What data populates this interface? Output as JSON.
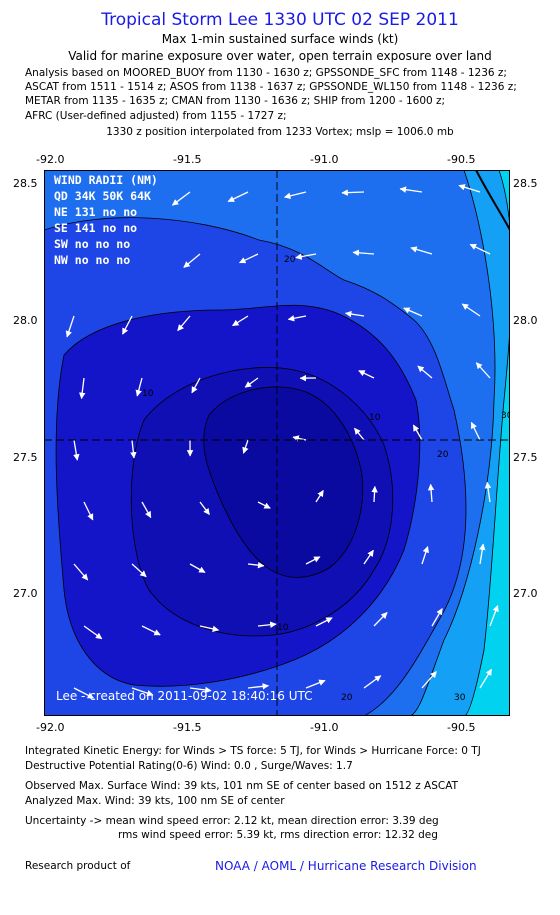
{
  "header": {
    "title": "Tropical Storm Lee 1330 UTC 02 SEP 2011",
    "subtitle": "Max 1-min sustained surface winds (kt)",
    "valid": "Valid for marine exposure over water, open terrain exposure over land",
    "analysis_lines": [
      "Analysis based on MOORED_BUOY from 1130 - 1630 z; GPSSONDE_SFC from 1148 - 1236 z;",
      "ASCAT from 1511 - 1514 z; ASOS from 1138 - 1637 z; GPSSONDE_WL150 from 1148 - 1236 z;",
      "METAR from 1135 - 1635 z; CMAN from 1130 - 1636 z; SHIP from 1200 - 1600 z;",
      "AFRC (User-defined adjusted) from 1155 - 1727 z;"
    ],
    "position": "1330 z position interpolated from 1233 Vortex; mslp = 1006.0 mb"
  },
  "map": {
    "x_ticks": [
      "-92.0",
      "-91.5",
      "-91.0",
      "-90.5"
    ],
    "y_ticks": [
      "28.5",
      "28.0",
      "27.5",
      "27.0"
    ],
    "lon_range": [
      -92.1,
      -90.1
    ],
    "lat_range": [
      26.55,
      28.6
    ],
    "center": {
      "lon": -91.0,
      "lat": 27.55
    },
    "contour_labels": [
      "20",
      "10",
      "10",
      "20",
      "10",
      "20",
      "30",
      "20",
      "30"
    ],
    "wind_radii": {
      "header": "WIND RADII (NM)",
      "columns": "QD 34K 50K 64K",
      "rows": [
        "NE 131  no  no",
        "SE 141  no  no",
        "SW  no  no  no",
        "NW  no  no  no"
      ]
    },
    "stamp": "Lee - created on 2011-09-02 18:40:16 UTC",
    "colors": {
      "lt10": "#1414c8",
      "10to20": "#1e46e6",
      "20to30": "#1e6ef0",
      "30to34": "#14a0f5",
      "gt34": "#00d2f0",
      "frame": "#000000"
    }
  },
  "footer": {
    "ike": "Integrated Kinetic Energy:  for Winds > TS force: 5 TJ,  for Winds > Hurricane Force: 0 TJ",
    "dpr": "Destructive Potential Rating(0-6)   Wind: 0.0 , Surge/Waves: 1.7",
    "observed": "Observed Max. Surface Wind: 39 kts, 101 nm SE of center based on 1512 z ASCAT",
    "analyzed": "Analyzed Max. Wind: 39 kts, 100 nm SE of center",
    "uncert1": "Uncertainty -> mean wind speed error: 2.12 kt,   mean direction error: 3.39 deg",
    "uncert2": "rms wind speed error: 5.39 kt,   rms direction error: 12.32 deg",
    "research": "Research product of",
    "org": "NOAA / AOML / Hurricane Research Division"
  }
}
